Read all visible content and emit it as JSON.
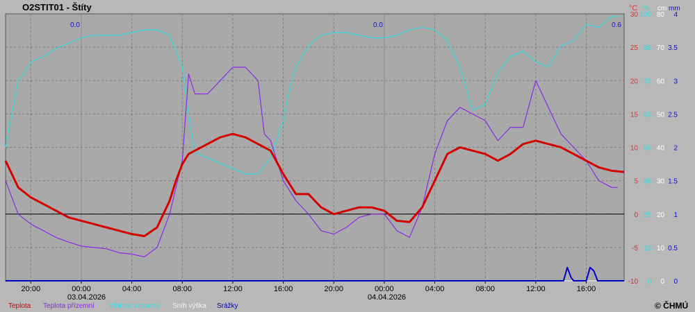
{
  "title": "O2STIT01 - Štíty",
  "copyright": "© ČHMÚ",
  "colors": {
    "plot_bg": "#a9a9a9",
    "teplota": "#d40000",
    "teplota_prizemni": "#8a2be2",
    "vlhkost": "#35d9e0",
    "snih": "#f4f4f4",
    "srazky": "#0000c8",
    "zero_line": "#000000",
    "grid": "#7a7a7a"
  },
  "axes": {
    "units": {
      "temp": "°C",
      "humidity": "%",
      "snow": "cm",
      "precip": "mm"
    },
    "temp_ticks": [
      "30",
      "25",
      "20",
      "15",
      "10",
      "5",
      "0",
      "-5",
      "-10"
    ],
    "humidity_ticks": [
      "100",
      "88",
      "75",
      "63",
      "50",
      "38",
      "25",
      "13",
      "0"
    ],
    "snow_ticks": [
      "80",
      "70",
      "60",
      "50",
      "40",
      "30",
      "20",
      "10",
      "0"
    ],
    "precip_ticks": [
      "4",
      "3.5",
      "3",
      "2.5",
      "2",
      "1.5",
      "1",
      "0.5",
      "0"
    ],
    "time_ticks": [
      "20:00",
      "00:00",
      "04:00",
      "08:00",
      "12:00",
      "16:00",
      "20:00",
      "00:00",
      "04:00",
      "08:00",
      "12:00",
      "16:00"
    ],
    "date_labels": [
      "03.04.2026",
      "04.04.2026"
    ],
    "daily_precip_labels": [
      "0.0",
      "0.0",
      "0.6"
    ]
  },
  "legend": [
    {
      "label": "Teplota",
      "color": "#d40000"
    },
    {
      "label": "Teplota přízemní",
      "color": "#8a2be2"
    },
    {
      "label": "Vlhkost vzduchu",
      "color": "#35d9e0"
    },
    {
      "label": "Sníh výška",
      "color": "#f4f4f4"
    },
    {
      "label": "Srážky",
      "color": "#0000c8"
    }
  ],
  "chart_data": {
    "type": "line",
    "x_unit": "hours since 02.04.2026 18:00",
    "xlim": [
      0,
      49
    ],
    "series": [
      {
        "name": "Teplota",
        "axis": "temp",
        "x": [
          0,
          1,
          2,
          3,
          4,
          5,
          6,
          7,
          8,
          9,
          10,
          11,
          12,
          13,
          13.5,
          14,
          14.5,
          15,
          16,
          17,
          18,
          19,
          20,
          21,
          22,
          23,
          24,
          25,
          26,
          27,
          28,
          29,
          30,
          31,
          32,
          33,
          34,
          35,
          36,
          37,
          38,
          39,
          40,
          41,
          42,
          43,
          44,
          45,
          46,
          47,
          48,
          49
        ],
        "y": [
          8,
          4,
          2.5,
          1.5,
          0.5,
          -0.5,
          -1,
          -1.5,
          -2,
          -2.5,
          -3,
          -3.3,
          -2,
          2,
          5,
          7.5,
          9,
          9.5,
          10.5,
          11.5,
          12,
          11.5,
          10.5,
          9.5,
          6,
          3,
          3,
          1,
          0,
          0.5,
          1,
          1,
          0.5,
          -1,
          -1.2,
          1,
          5,
          9,
          10,
          9.5,
          9,
          8,
          9,
          10.5,
          11,
          10.5,
          10,
          9,
          8,
          7,
          6.5,
          6.3
        ]
      },
      {
        "name": "Teplota přízemní",
        "axis": "temp",
        "x": [
          0,
          1,
          2,
          3,
          4,
          5,
          6,
          7,
          8,
          9,
          10,
          11,
          12,
          13,
          14,
          14.5,
          15,
          16,
          17,
          18,
          19,
          20,
          20.5,
          21,
          22,
          23,
          24,
          25,
          26,
          27,
          28,
          29,
          30,
          31,
          32,
          33,
          34,
          35,
          36,
          37,
          38,
          39,
          40,
          41,
          42,
          43,
          44,
          45,
          46,
          47,
          48,
          48.5
        ],
        "y": [
          5,
          0,
          -1.5,
          -2.5,
          -3.5,
          -4.2,
          -4.8,
          -5,
          -5.2,
          -5.8,
          -6,
          -6.4,
          -5,
          0,
          8,
          21,
          18,
          18,
          20,
          22,
          22,
          20,
          12,
          11,
          5,
          2,
          0,
          -2.5,
          -3,
          -2,
          -0.5,
          0,
          0,
          -2.5,
          -3.5,
          1,
          9,
          14,
          16,
          15,
          14,
          11,
          13,
          13,
          20,
          16,
          12,
          10,
          8,
          5,
          4,
          4
        ]
      },
      {
        "name": "Vlhkost vzduchu",
        "axis": "humidity",
        "x": [
          0,
          1,
          1.5,
          2,
          3,
          4,
          5,
          6,
          7,
          8,
          9,
          10,
          11,
          12,
          13,
          14,
          14.5,
          15,
          16,
          17,
          18,
          19,
          20,
          21,
          22,
          22.5,
          23,
          24,
          25,
          26,
          27,
          28,
          29,
          30,
          31,
          32,
          33,
          34,
          35,
          36,
          37,
          38,
          39,
          40,
          41,
          42,
          43,
          44,
          45,
          46,
          47,
          48,
          48.5
        ],
        "y": [
          50,
          75,
          78,
          82,
          84,
          87,
          89,
          91,
          92,
          92,
          92,
          93,
          94,
          94,
          92,
          80,
          62,
          48,
          46,
          44,
          42,
          40,
          40,
          46,
          60,
          72,
          80,
          88,
          92,
          93,
          93,
          92,
          91,
          91,
          92,
          94,
          95,
          94,
          90,
          80,
          64,
          66,
          78,
          84,
          86,
          82,
          80,
          88,
          90,
          96,
          95,
          99,
          99
        ]
      },
      {
        "name": "Sníh výška",
        "axis": "snow",
        "x": [
          0,
          49
        ],
        "y": [
          0,
          0
        ]
      },
      {
        "name": "Srážky",
        "axis": "precip",
        "x": [
          0,
          44.2,
          44.5,
          44.8,
          45,
          46,
          46.3,
          46.6,
          46.9,
          49
        ],
        "y": [
          0,
          0,
          0.2,
          0.05,
          0,
          0,
          0.2,
          0.15,
          0,
          0
        ]
      }
    ],
    "ylim_temp": [
      -10,
      30
    ],
    "ylim_humidity": [
      0,
      100
    ],
    "ylim_snow": [
      0,
      80
    ],
    "ylim_precip": [
      0,
      4
    ],
    "grid": true
  }
}
